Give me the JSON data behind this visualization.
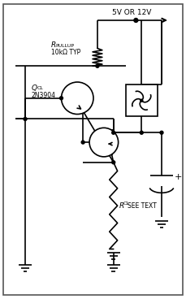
{
  "bg_color": "#ffffff",
  "line_color": "#000000",
  "line_width": 1.2,
  "fig_width": 2.3,
  "fig_height": 3.68,
  "dpi": 100,
  "label_5v": "5V OR 12V",
  "label_rpullup_r": "R",
  "label_rpullup_sub": "PULLUP",
  "label_rpullup_val": "10kΩ TYP",
  "label_qcl_q": "Q",
  "label_qcl_sub": "CL",
  "label_qcl_val": "2N3904",
  "label_rcl_r": "R",
  "label_rcl_sub": "CL",
  "label_see_text": "SEE TEXT"
}
